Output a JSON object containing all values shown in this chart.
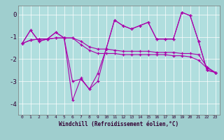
{
  "xlabel": "Windchill (Refroidissement éolien,°C)",
  "x": [
    0,
    1,
    2,
    3,
    4,
    5,
    6,
    7,
    8,
    9,
    10,
    11,
    12,
    13,
    14,
    15,
    16,
    17,
    18,
    19,
    20,
    21,
    22,
    23
  ],
  "line1": [
    -1.3,
    -0.7,
    -1.2,
    -1.1,
    -0.8,
    -1.05,
    -3.0,
    -2.9,
    -3.35,
    -3.0,
    -1.55,
    -0.25,
    -0.5,
    -0.65,
    -0.5,
    -0.35,
    -1.1,
    -1.1,
    -1.1,
    0.1,
    -0.05,
    -1.2,
    -2.5,
    -2.6
  ],
  "line2": [
    -1.3,
    -0.7,
    -1.2,
    -1.1,
    -0.8,
    -1.05,
    -3.85,
    -2.85,
    -3.35,
    -2.65,
    -1.55,
    -0.25,
    -0.5,
    -0.65,
    -0.5,
    -0.35,
    -1.1,
    -1.1,
    -1.1,
    0.1,
    -0.05,
    -1.2,
    -2.5,
    -2.6
  ],
  "line3": [
    -1.3,
    -1.15,
    -1.1,
    -1.1,
    -1.05,
    -1.05,
    -1.05,
    -1.2,
    -1.45,
    -1.55,
    -1.55,
    -1.6,
    -1.65,
    -1.65,
    -1.65,
    -1.65,
    -1.7,
    -1.7,
    -1.7,
    -1.75,
    -1.75,
    -1.8,
    -2.35,
    -2.6
  ],
  "line4": [
    -1.3,
    -1.15,
    -1.1,
    -1.1,
    -1.05,
    -1.05,
    -1.05,
    -1.35,
    -1.6,
    -1.75,
    -1.75,
    -1.75,
    -1.8,
    -1.8,
    -1.8,
    -1.8,
    -1.8,
    -1.8,
    -1.85,
    -1.85,
    -1.9,
    -2.05,
    -2.4,
    -2.6
  ],
  "line_color": "#aa00aa",
  "bg_color": "#9fcece",
  "plot_bg": "#b0dede",
  "ylim": [
    -4.5,
    0.4
  ],
  "yticks": [
    0,
    -1,
    -2,
    -3,
    -4
  ]
}
